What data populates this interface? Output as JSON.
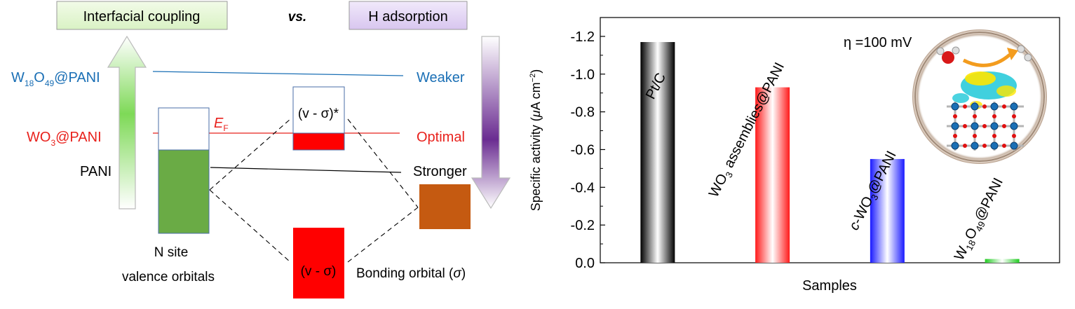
{
  "left": {
    "box_left": "Interfacial coupling",
    "vs": "vs.",
    "box_right": "H adsorption",
    "levels": [
      {
        "base": "W",
        "sub1": "18",
        "mid": "O",
        "sub2": "49",
        "tail": "@PANI",
        "color": "#1a6fb5",
        "right": "Weaker"
      },
      {
        "base": "WO",
        "sub1": "3",
        "mid": "",
        "sub2": "",
        "tail": "@PANI",
        "color": "#e8211c",
        "right": "Optimal"
      },
      {
        "base": "PANI",
        "sub1": "",
        "mid": "",
        "sub2": "",
        "tail": "",
        "color": "#000000",
        "right": "Stronger"
      }
    ],
    "ef_main": "E",
    "ef_sub": "F",
    "antibonding": "(v - σ)*",
    "bonding_box": "(v - σ)",
    "n_site_line1": "N site",
    "n_site_line2": "valence orbitals",
    "bonding_orbital": "Bonding orbital (",
    "bonding_orbital_sym": "σ",
    "bonding_orbital_end": ")"
  },
  "chart_data": {
    "type": "bar",
    "categories": [
      "Pt/C",
      "WO3 assemblies@PANI",
      "c-WO3@PANI",
      "W18O49@PANI"
    ],
    "values": [
      -1.17,
      -0.93,
      -0.55,
      -0.02
    ],
    "xlabel": "Samples",
    "ylabel": "Specific activity (μA cm⁻²)",
    "ylim": [
      0.0,
      -1.3
    ],
    "yticks": [
      "-1.2",
      "-1.0",
      "-0.8",
      "-0.6",
      "-0.4",
      "-0.2",
      "0.0"
    ],
    "ytick_values": [
      -1.2,
      -1.0,
      -0.8,
      -0.6,
      -0.4,
      -0.2,
      0.0
    ],
    "colors": [
      "#000000",
      "#ff1a1a",
      "#1a1aff",
      "#22cc22"
    ],
    "annotation": "η =100 mV",
    "bar_labels": [
      {
        "parts": [
          [
            "Pt/C",
            ""
          ]
        ]
      },
      {
        "parts": [
          [
            "WO",
            ""
          ],
          [
            "3",
            "sub"
          ],
          [
            " assemblies@PANI",
            ""
          ]
        ]
      },
      {
        "parts": [
          [
            "c",
            "ital"
          ],
          [
            "-WO",
            ""
          ],
          [
            "3",
            "sub"
          ],
          [
            "@PANI",
            ""
          ]
        ]
      },
      {
        "parts": [
          [
            "W",
            ""
          ],
          [
            "18",
            "sub"
          ],
          [
            "O",
            ""
          ],
          [
            "49",
            "sub"
          ],
          [
            "@PANI",
            ""
          ]
        ]
      }
    ]
  }
}
